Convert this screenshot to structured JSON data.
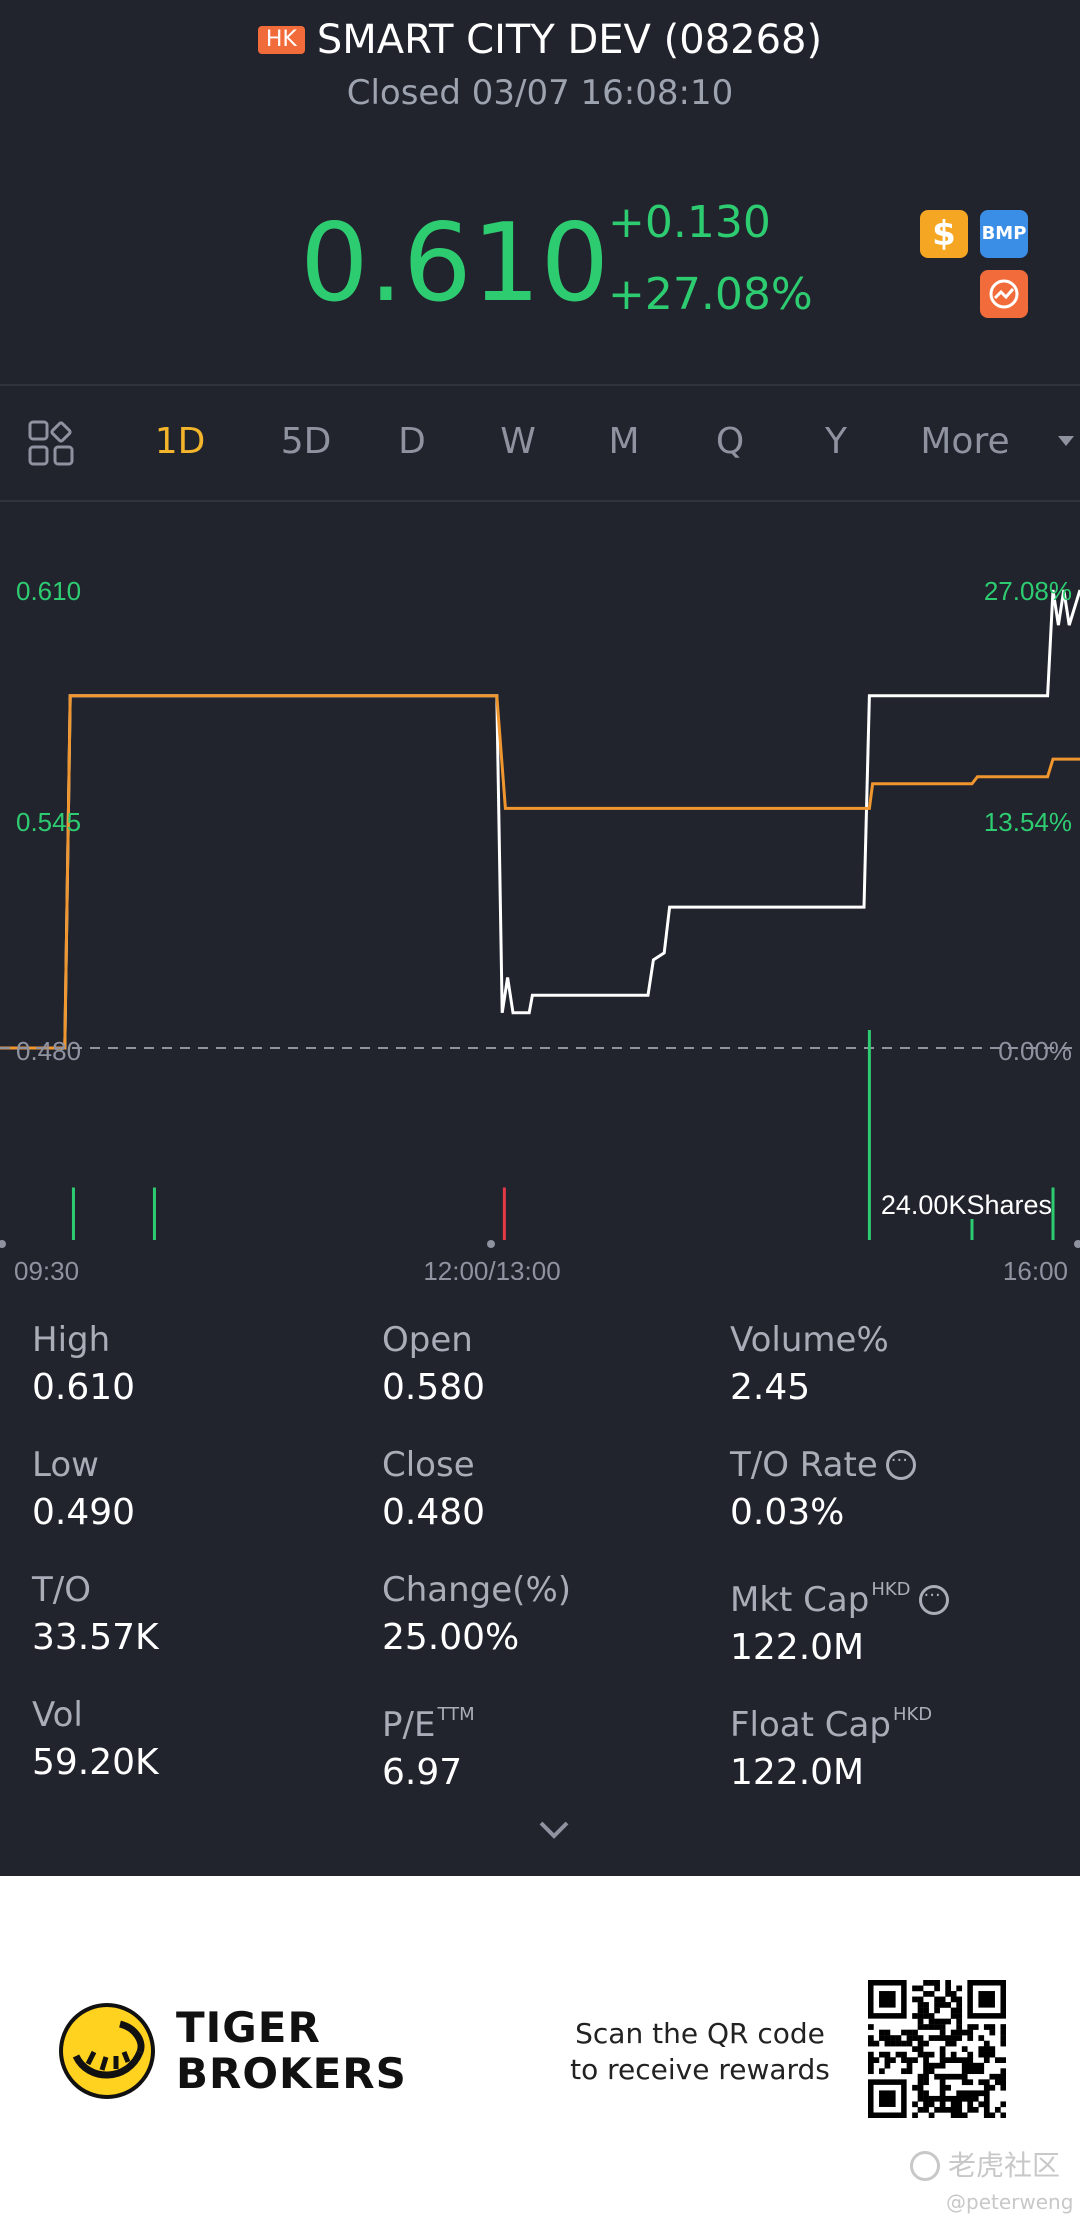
{
  "header": {
    "market_badge": "HK",
    "title": "SMART CITY DEV (08268)",
    "status": "Closed 03/07 16:08:10"
  },
  "quote": {
    "price": "0.610",
    "change": "+0.130",
    "change_pct": "+27.08%",
    "badges": [
      {
        "icon": "dollar-icon",
        "label": "$",
        "color": "#f5a623"
      },
      {
        "icon": "bmp-icon",
        "label": "BMP",
        "color": "#3a8ee6"
      },
      {
        "icon": "options-icon",
        "label": "",
        "color": "#f26b3a"
      }
    ]
  },
  "tabs": {
    "items": [
      "1D",
      "5D",
      "D",
      "W",
      "M",
      "Q",
      "Y",
      "More"
    ],
    "active": "1D"
  },
  "chart_data": {
    "type": "line",
    "y_left_labels": [
      "0.610",
      "0.545",
      "0.480"
    ],
    "y_right_labels": [
      "27.08%",
      "13.54%",
      "0.00%"
    ],
    "x_labels": [
      "09:30",
      "12:00/13:00",
      "16:00"
    ],
    "ylim": [
      0.48,
      0.61
    ],
    "series": [
      {
        "color": "#ffffff",
        "points": [
          [
            0,
            0.48
          ],
          [
            0.06,
            0.48
          ],
          [
            0.065,
            0.58
          ],
          [
            0.46,
            0.58
          ],
          [
            0.465,
            0.49
          ],
          [
            0.47,
            0.5
          ],
          [
            0.475,
            0.49
          ],
          [
            0.49,
            0.49
          ],
          [
            0.493,
            0.495
          ],
          [
            0.6,
            0.495
          ],
          [
            0.605,
            0.505
          ],
          [
            0.615,
            0.507
          ],
          [
            0.62,
            0.52
          ],
          [
            0.8,
            0.52
          ],
          [
            0.805,
            0.58
          ],
          [
            0.97,
            0.58
          ],
          [
            0.975,
            0.61
          ],
          [
            0.98,
            0.6
          ],
          [
            0.985,
            0.61
          ],
          [
            0.99,
            0.6
          ],
          [
            1,
            0.61
          ]
        ]
      },
      {
        "color": "#f0962e",
        "points": [
          [
            0,
            0.48
          ],
          [
            0.06,
            0.48
          ],
          [
            0.065,
            0.58
          ],
          [
            0.46,
            0.58
          ],
          [
            0.468,
            0.548
          ],
          [
            0.805,
            0.548
          ],
          [
            0.808,
            0.555
          ],
          [
            0.9,
            0.555
          ],
          [
            0.905,
            0.557
          ],
          [
            0.97,
            0.557
          ],
          [
            0.975,
            0.562
          ],
          [
            1,
            0.562
          ]
        ]
      }
    ],
    "baseline": 0.48,
    "volume_label": "24.00KShares",
    "volume_bars": [
      {
        "t": 0.068,
        "value": 0.25,
        "color": "#2ecc71"
      },
      {
        "t": 0.143,
        "value": 0.25,
        "color": "#2ecc71"
      },
      {
        "t": 0.467,
        "value": 0.25,
        "color": "#e63946"
      },
      {
        "t": 0.805,
        "value": 1.0,
        "color": "#2ecc71"
      },
      {
        "t": 0.9,
        "value": 0.1,
        "color": "#2ecc71"
      },
      {
        "t": 0.975,
        "value": 0.25,
        "color": "#2ecc71"
      }
    ]
  },
  "stats": [
    {
      "label": "High",
      "value": "0.610"
    },
    {
      "label": "Open",
      "value": "0.580"
    },
    {
      "label": "Volume%",
      "value": "2.45"
    },
    {
      "label": "Low",
      "value": "0.490"
    },
    {
      "label": "Close",
      "value": "0.480"
    },
    {
      "label": "T/O Rate",
      "value": "0.03%"
    },
    {
      "label": "T/O",
      "value": "33.57K"
    },
    {
      "label": "Change(%)",
      "value": "25.00%"
    },
    {
      "label": "Mkt Cap",
      "sup": "HKD",
      "value": "122.0M"
    },
    {
      "label": "Vol",
      "value": "59.20K"
    },
    {
      "label": "P/E",
      "sup": "TTM",
      "value": "6.97"
    },
    {
      "label": "Float Cap",
      "sup": "HKD",
      "value": "122.0M"
    }
  ],
  "footer": {
    "brand_line1": "TIGER",
    "brand_line2": "BROKERS",
    "scan_line1": "Scan the QR code",
    "scan_line2": "to receive rewards",
    "watermark_cn": "老虎社区",
    "watermark_user": "@peterweng"
  }
}
